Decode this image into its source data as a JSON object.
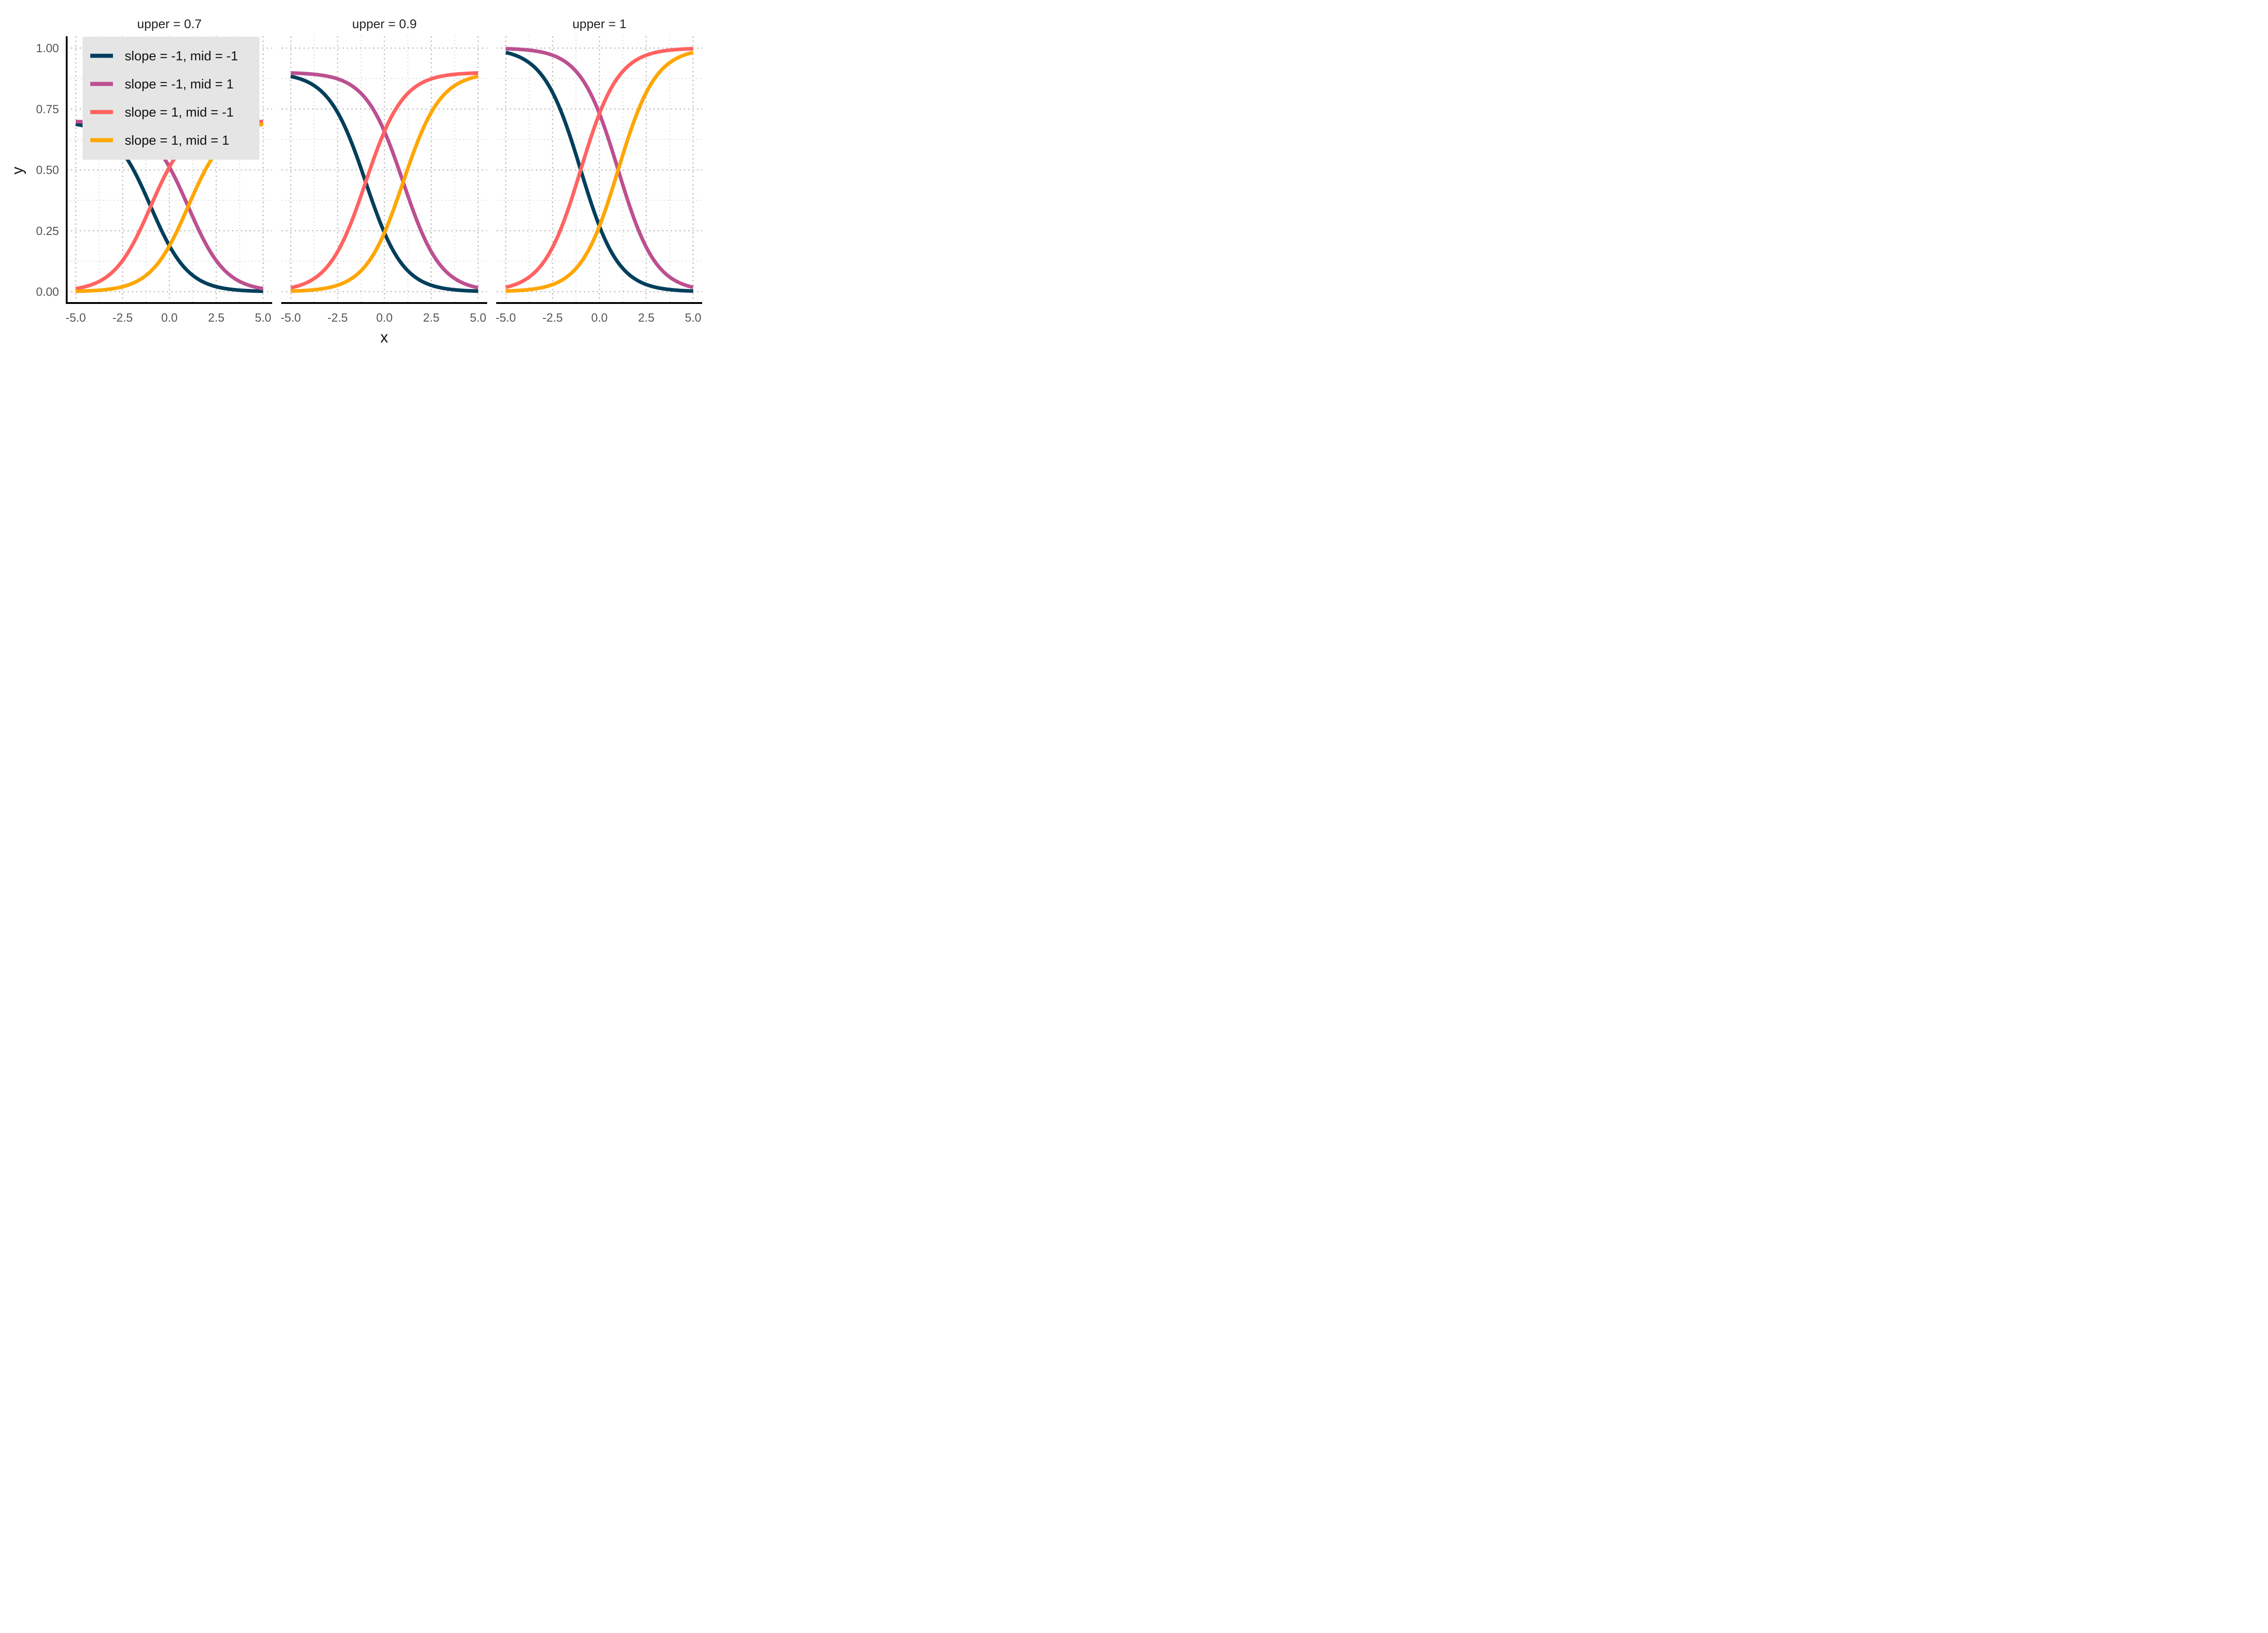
{
  "chart_data": {
    "type": "line",
    "xlabel": "x",
    "ylabel": "y",
    "xlim": [
      -5,
      5
    ],
    "ylim": [
      0,
      1
    ],
    "x_ticks": [
      "-5.0",
      "-2.5",
      "0.0",
      "2.5",
      "5.0"
    ],
    "y_ticks": [
      "0.00",
      "0.25",
      "0.50",
      "0.75",
      "1.00"
    ],
    "x_tick_values": [
      -5,
      -2.5,
      0,
      2.5,
      5
    ],
    "y_tick_values": [
      0,
      0.25,
      0.5,
      0.75,
      1
    ],
    "grid": "dotted",
    "legend_position": "top-left (inside first panel)",
    "facet_variable": "upper",
    "panels": [
      {
        "title": "upper = 0.7",
        "upper": 0.7
      },
      {
        "title": "upper = 0.9",
        "upper": 0.9
      },
      {
        "title": "upper = 1",
        "upper": 1
      }
    ],
    "series": [
      {
        "name": "slope = -1, mid = -1",
        "slope": -1,
        "mid": -1,
        "color": "#003f5c"
      },
      {
        "name": "slope = -1, mid = 1",
        "slope": -1,
        "mid": 1,
        "color": "#bc5090"
      },
      {
        "name": "slope = 1, mid = -1",
        "slope": 1,
        "mid": -1,
        "color": "#ff6361"
      },
      {
        "name": "slope = 1, mid = 1",
        "slope": 1,
        "mid": 1,
        "color": "#ffa600"
      }
    ],
    "curve": "y = upper / (1 + exp(-slope * (x - mid)))"
  },
  "legend": {
    "background": "#e5e5e5"
  }
}
